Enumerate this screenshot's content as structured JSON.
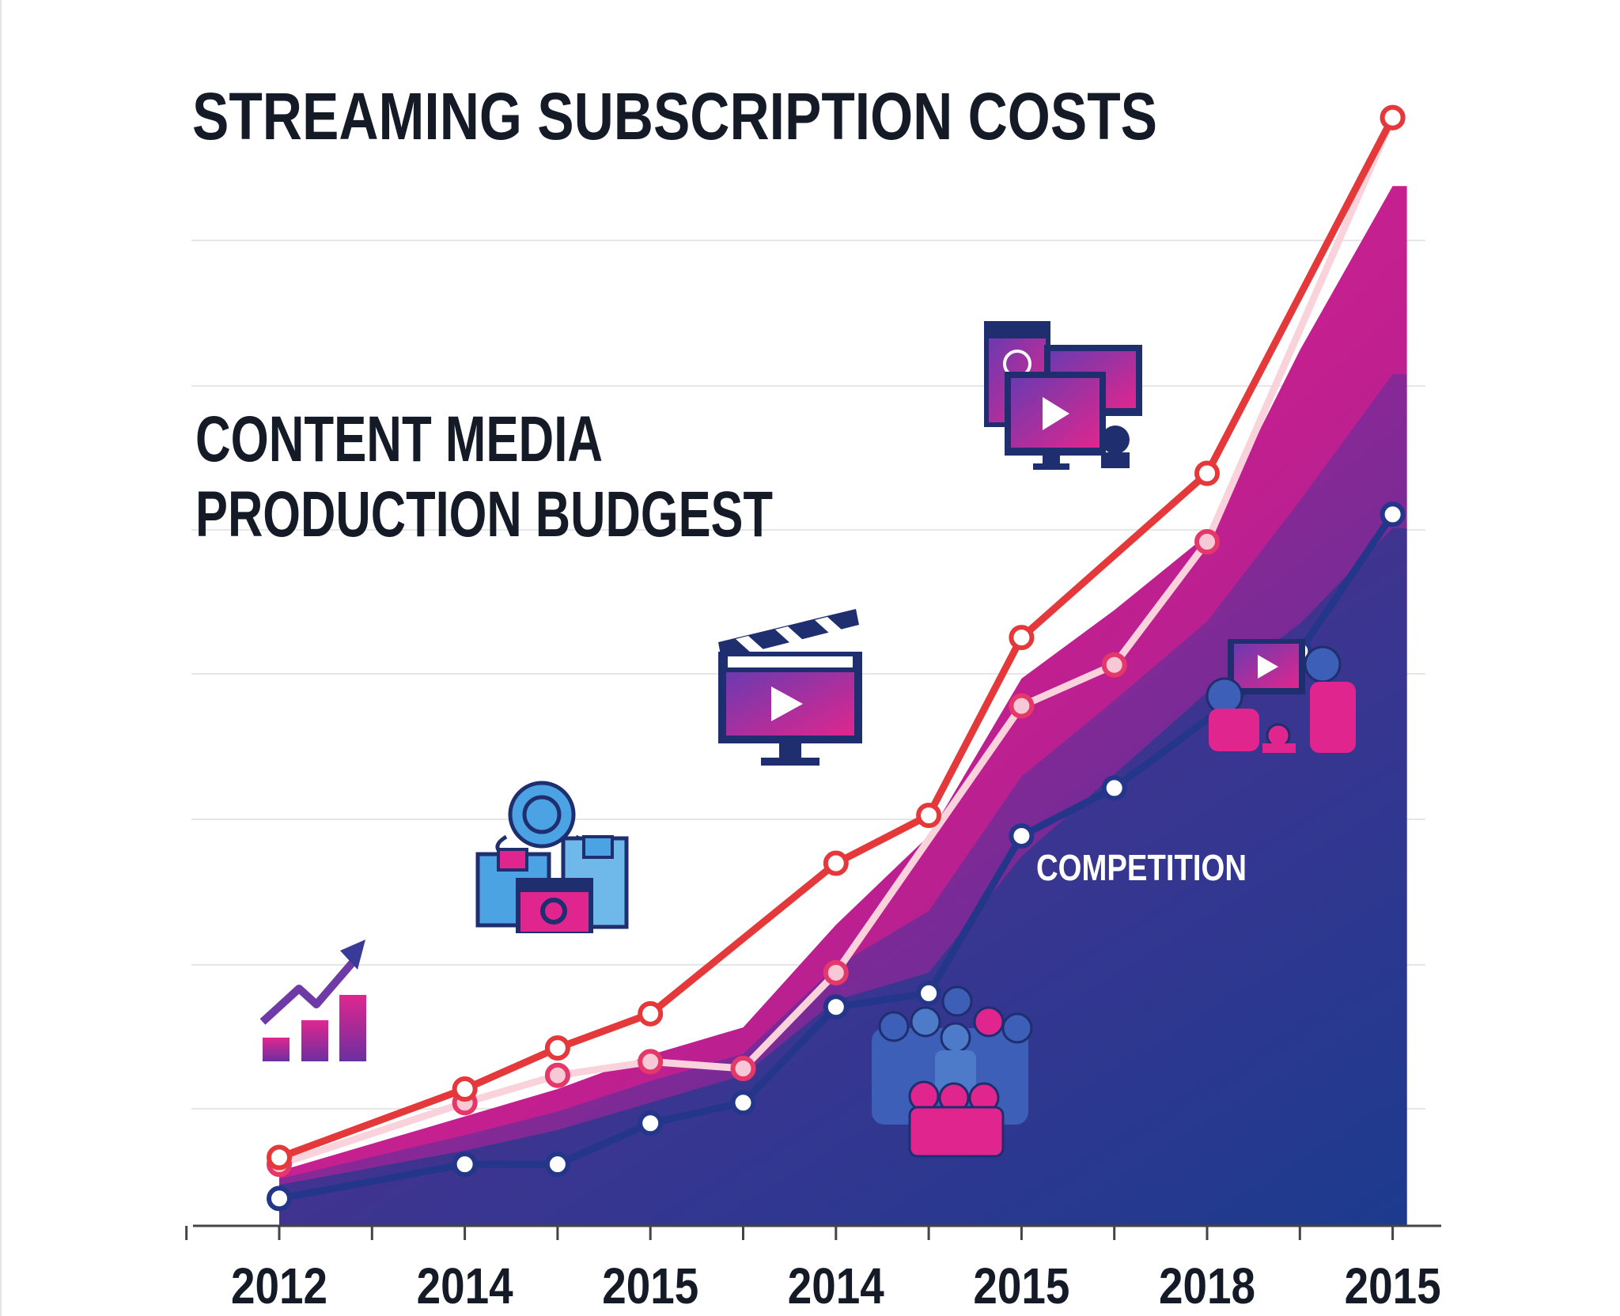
{
  "chart_data": {
    "type": "line",
    "title": "STREAMING SUBSCRIPTION COSTS",
    "subtitle": [
      "CONTENT MEDIA",
      "PRODUCTION BUDGEST"
    ],
    "xlabel": "",
    "ylabel": "",
    "categories": [
      "2012",
      "",
      "2014",
      "",
      "2015",
      "",
      "2014",
      "",
      "2015",
      "",
      "2018",
      "",
      "2015"
    ],
    "tick_labels": [
      "2012",
      "2014",
      "2015",
      "2014",
      "2015",
      "2018",
      "2015"
    ],
    "annotation": "COMPETITION",
    "ylim": [
      0,
      9
    ],
    "grid": true,
    "legend": "none",
    "series": [
      {
        "values": [
          0.5,
          null,
          1.0,
          1.3,
          1.55,
          null,
          2.65,
          3.0,
          4.3,
          null,
          5.5,
          null,
          8.1
        ]
      },
      {
        "values": [
          0.45,
          null,
          0.9,
          1.1,
          1.2,
          1.15,
          1.85,
          null,
          3.8,
          4.1,
          5.0,
          null,
          8.1
        ]
      },
      {
        "values": [
          0.2,
          null,
          0.45,
          0.45,
          0.75,
          0.9,
          1.6,
          1.7,
          2.85,
          3.2,
          null,
          4.2,
          5.2
        ]
      },
      {
        "values": [
          0.4,
          null,
          0.8,
          1.0,
          1.25,
          1.45,
          2.2,
          2.85,
          4.0,
          4.5,
          5.05,
          6.4,
          7.6
        ]
      },
      {
        "values": [
          0.3,
          null,
          0.55,
          0.7,
          0.9,
          1.1,
          1.65,
          1.85,
          2.7,
          3.3,
          3.9,
          4.4,
          5.1
        ]
      }
    ],
    "colors": {
      "line_red": "#e5383b",
      "line_light": "#f9d2dc",
      "line_navy": "#24368a",
      "area_pink": "#e01f8e",
      "area_violet": "#8a2a9a",
      "area_deep": "#5a2a8f",
      "area_navy": "#1f3a8f",
      "grid": "#e6e6e6",
      "axis": "#444444",
      "text": "#151a27"
    },
    "icons": [
      "bar-chart-growth-icon",
      "workflow-diagram-icon",
      "clapperboard-monitor-icon",
      "video-screens-icon",
      "crowd-icon",
      "family-watching-tv-icon"
    ]
  }
}
